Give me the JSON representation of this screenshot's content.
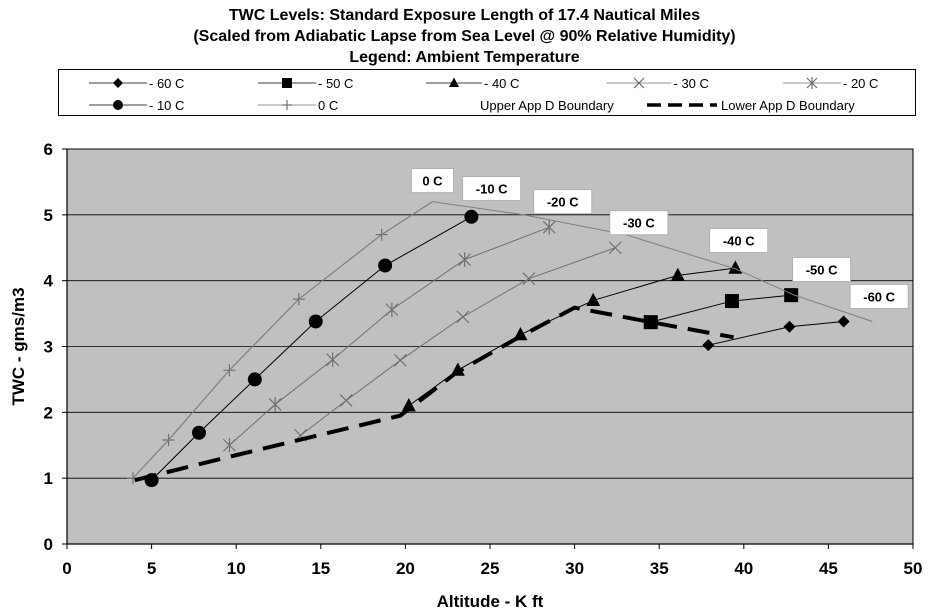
{
  "chart_data": {
    "type": "line",
    "title": "TWC Levels:  Standard Exposure Length of 17.4 Nautical Miles",
    "subtitle": "(Scaled from Adiabatic Lapse from Sea Level @ 90% Relative Humidity)",
    "legend_title": "Legend:  Ambient Temperature",
    "xlabel": "Altitude - K ft",
    "ylabel": "TWC - gms/m3",
    "xlim": [
      0,
      50
    ],
    "ylim": [
      0,
      6
    ],
    "xticks": [
      "0",
      "5",
      "10",
      "15",
      "20",
      "25",
      "30",
      "35",
      "40",
      "45",
      "50"
    ],
    "yticks": [
      "0",
      "1",
      "2",
      "3",
      "4",
      "5",
      "6"
    ],
    "grid": true,
    "background_color": "#c0c0c0",
    "legend_position": "top",
    "series": [
      {
        "name": "- 60 C",
        "marker": "diamond",
        "color": "#000000",
        "x": [
          37.9,
          42.7,
          45.9
        ],
        "y": [
          3.02,
          3.3,
          3.38
        ],
        "marker_idx": [
          0,
          1,
          2
        ]
      },
      {
        "name": "- 50 C",
        "marker": "square",
        "color": "#000000",
        "x": [
          34.5,
          39.3,
          42.8
        ],
        "y": [
          3.37,
          3.69,
          3.78
        ],
        "marker_idx": [
          0,
          1,
          2
        ]
      },
      {
        "name": "- 40 C",
        "marker": "triangle",
        "color": "#000000",
        "x": [
          20.2,
          23.1,
          26.8,
          31.1,
          36.1,
          39.5
        ],
        "y": [
          2.1,
          2.64,
          3.18,
          3.7,
          4.08,
          4.19
        ],
        "marker_idx": [
          0,
          1,
          2,
          3,
          4,
          5
        ]
      },
      {
        "name": "- 30 C",
        "marker": "x",
        "color": "#707070",
        "x": [
          13.8,
          16.5,
          19.7,
          23.4,
          27.3,
          32.4
        ],
        "y": [
          1.65,
          2.18,
          2.79,
          3.45,
          4.03,
          4.5
        ],
        "marker_idx": [
          0,
          1,
          2,
          3,
          4,
          5
        ]
      },
      {
        "name": "- 20 C",
        "marker": "star",
        "color": "#707070",
        "x": [
          9.6,
          12.3,
          15.7,
          19.2,
          23.5,
          28.5
        ],
        "y": [
          1.5,
          2.12,
          2.8,
          3.56,
          4.32,
          4.81
        ],
        "marker_idx": [
          0,
          1,
          2,
          3,
          4,
          5
        ]
      },
      {
        "name": "- 10 C",
        "marker": "circle",
        "color": "#000000",
        "x": [
          5.0,
          7.8,
          11.1,
          14.7,
          18.8,
          23.9
        ],
        "y": [
          0.97,
          1.69,
          2.5,
          3.38,
          4.23,
          4.97
        ],
        "marker_idx": [
          0,
          1,
          2,
          3,
          4,
          5
        ]
      },
      {
        "name": "0 C",
        "marker": "plus",
        "color": "#707070",
        "x": [
          3.9,
          6.0,
          9.6,
          13.7,
          18.6,
          21.6
        ],
        "y": [
          1.0,
          1.58,
          2.64,
          3.72,
          4.7,
          5.2
        ],
        "marker_idx": [
          0,
          1,
          2,
          3,
          4
        ]
      },
      {
        "name": "Upper App D Boundary",
        "marker": "none",
        "color": "#808080",
        "x": [
          3.9,
          6.0,
          9.6,
          13.7,
          18.6,
          21.6,
          27.0,
          33.0,
          39.5,
          43.0,
          47.6
        ],
        "y": [
          1.0,
          1.58,
          2.64,
          3.72,
          4.7,
          5.2,
          5.0,
          4.7,
          4.18,
          3.78,
          3.38
        ],
        "marker_idx": []
      },
      {
        "name": "Lower App D Boundary",
        "marker": "none",
        "dashed": true,
        "color": "#000000",
        "x": [
          4.0,
          10.0,
          15.0,
          19.7,
          23.0,
          26.7,
          30.0,
          34.5,
          39.4
        ],
        "y": [
          0.97,
          1.35,
          1.66,
          1.95,
          2.6,
          3.14,
          3.59,
          3.37,
          3.14
        ],
        "marker_idx": []
      }
    ],
    "annotations": [
      {
        "text": "0 C",
        "x": 21.6,
        "y": 5.52
      },
      {
        "text": "-10 C",
        "x": 25.1,
        "y": 5.4
      },
      {
        "text": "-20 C",
        "x": 29.3,
        "y": 5.2
      },
      {
        "text": "-30 C",
        "x": 33.8,
        "y": 4.88
      },
      {
        "text": "-40 C",
        "x": 39.7,
        "y": 4.61
      },
      {
        "text": "-50 C",
        "x": 44.6,
        "y": 4.17
      },
      {
        "text": "-60 C",
        "x": 48.0,
        "y": 3.76
      }
    ]
  }
}
